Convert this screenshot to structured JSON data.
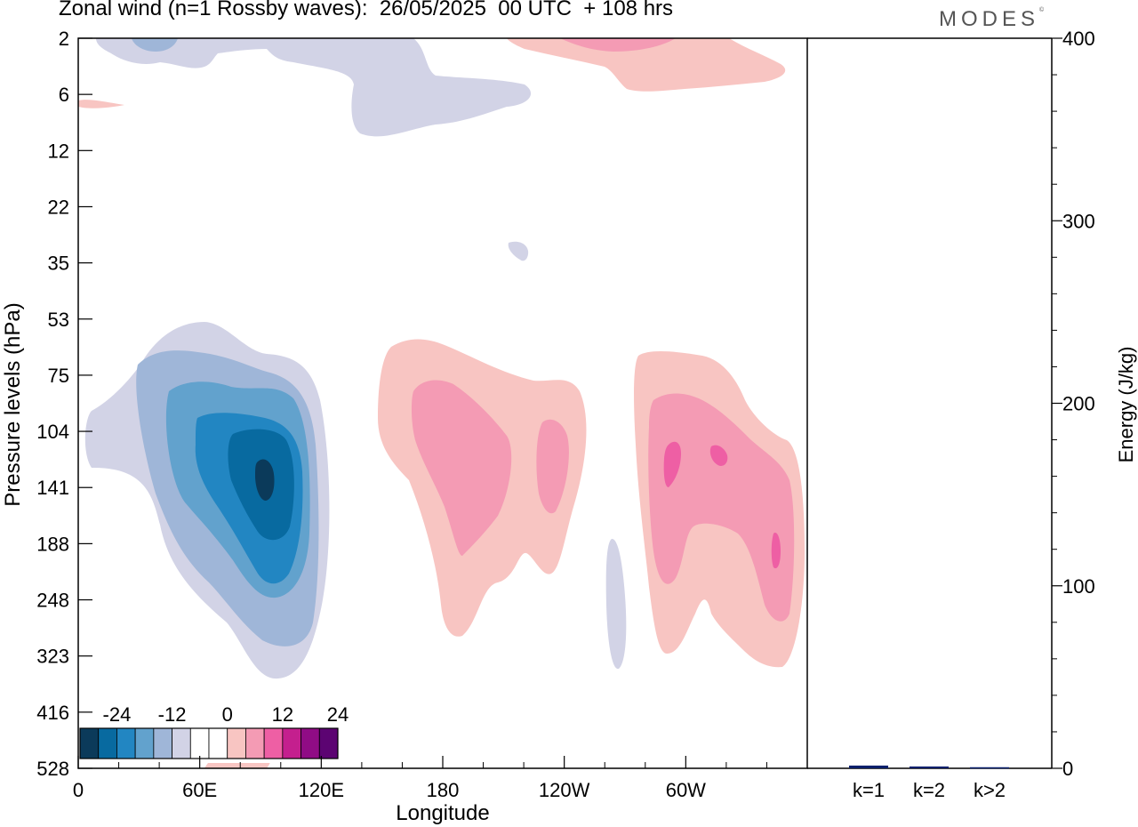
{
  "title": "Zonal wind (n=1 Rossby waves):  26/05/2025  00 UTC  + 108 hrs",
  "logo": "MODES",
  "logo_mark": "©",
  "chart_data": [
    {
      "type": "heatmap",
      "xlabel": "Longitude",
      "ylabel": "Pressure levels (hPa)",
      "x_ticks": [
        "0",
        "60E",
        "120E",
        "180",
        "120W",
        "60W"
      ],
      "x_range_deg": [
        0,
        360
      ],
      "y_ticks": [
        "2",
        "6",
        "12",
        "22",
        "35",
        "53",
        "75",
        "104",
        "141",
        "188",
        "248",
        "323",
        "416",
        "528"
      ],
      "colorbar": {
        "labels": [
          "-24",
          "-12",
          "0",
          "12",
          "24"
        ],
        "colors": [
          "#0b3a5a",
          "#086aa0",
          "#2286c2",
          "#62a2cd",
          "#9fb6d8",
          "#d2d3e6",
          "#ffffff",
          "#ffffff",
          "#f8c5c2",
          "#f49bb4",
          "#ee5fa4",
          "#c41f8e",
          "#900c85",
          "#5c0472"
        ]
      },
      "features": [
        {
          "sign": "negative",
          "center_lon": 90,
          "center_hpa": 141,
          "peak": -24
        },
        {
          "sign": "positive",
          "center_lon": 185,
          "center_hpa": 116,
          "peak": 9
        },
        {
          "sign": "positive",
          "center_lon": 290,
          "center_hpa": 141,
          "peak": 14
        },
        {
          "sign": "negative",
          "center_lon": 35,
          "center_hpa": 2,
          "peak": -8
        },
        {
          "sign": "positive",
          "center_lon": 270,
          "center_hpa": 2,
          "peak": 12
        }
      ]
    },
    {
      "type": "bar",
      "ylabel": "Energy (J/kg)",
      "categories": [
        "k=1",
        "k=2",
        "k>2"
      ],
      "values": [
        1.5,
        1.0,
        0.6
      ],
      "ylim": [
        0,
        400
      ],
      "y_ticks": [
        "0",
        "100",
        "200",
        "300",
        "400"
      ],
      "bar_color": "#0a1f6b"
    }
  ]
}
